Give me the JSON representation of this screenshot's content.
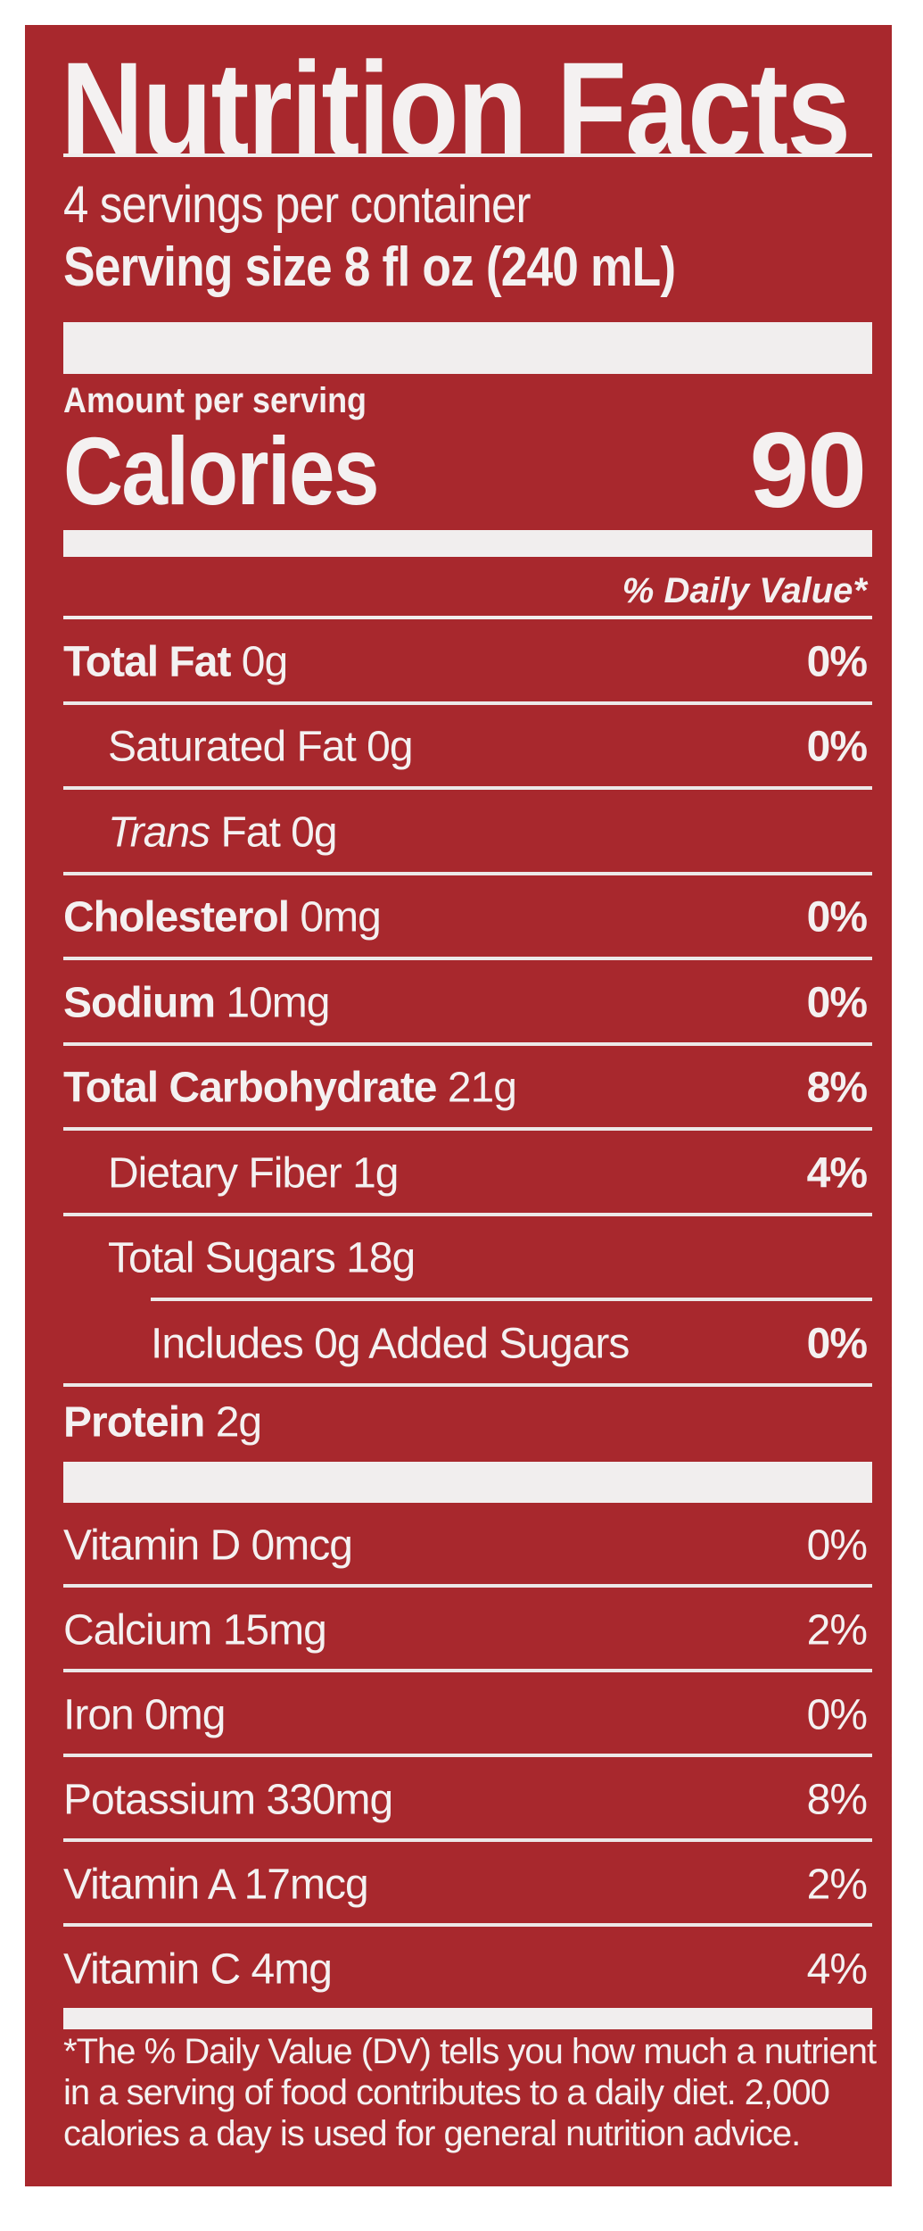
{
  "label": {
    "title": "Nutrition Facts",
    "servings_per_container": "4 servings per container",
    "serving_size": "Serving size 8 fl oz (240 mL)",
    "amount_per_serving": "Amount per serving",
    "calories_label": "Calories",
    "calories_value": "90",
    "daily_value_header": "% Daily Value*",
    "nutrients": [
      {
        "name": "Total Fat",
        "amount": "0g",
        "dv": "0%",
        "indent": 0,
        "bold": true
      },
      {
        "name": "Saturated Fat",
        "amount": "0g",
        "dv": "0%",
        "indent": 1,
        "bold": false
      },
      {
        "name": "Trans",
        "suffix": "Fat 0g",
        "amount": "",
        "dv": "",
        "indent": 1,
        "italic": true
      },
      {
        "name": "Cholesterol",
        "amount": "0mg",
        "dv": "0%",
        "indent": 0,
        "bold": true
      },
      {
        "name": "Sodium",
        "amount": "10mg",
        "dv": "0%",
        "indent": 0,
        "bold": true
      },
      {
        "name": "Total Carbohydrate",
        "amount": "21g",
        "dv": "8%",
        "indent": 0,
        "bold": true
      },
      {
        "name": "Dietary Fiber",
        "amount": "1g",
        "dv": "4%",
        "indent": 1,
        "bold": false
      },
      {
        "name": "Total Sugars",
        "amount": "18g",
        "dv": "",
        "indent": 1,
        "bold": false
      },
      {
        "name": "Includes 0g Added Sugars",
        "amount": "",
        "dv": "0%",
        "indent": 2,
        "bold": false
      },
      {
        "name": "Protein",
        "amount": "2g",
        "dv": "",
        "indent": 0,
        "bold": true
      }
    ],
    "vitamins": [
      {
        "name": "Vitamin D",
        "amount": "0mcg",
        "dv": "0%"
      },
      {
        "name": "Calcium",
        "amount": "15mg",
        "dv": "2%"
      },
      {
        "name": "Iron",
        "amount": "0mg",
        "dv": "0%"
      },
      {
        "name": "Potassium",
        "amount": "330mg",
        "dv": "8%"
      },
      {
        "name": "Vitamin A",
        "amount": "17mcg",
        "dv": "2%"
      },
      {
        "name": "Vitamin C",
        "amount": "4mg",
        "dv": "4%"
      }
    ],
    "footnote": "*The % Daily Value (DV) tells you how much a nutrient in a serving of food contributes to a daily diet. 2,000 calories a day is used for general nutrition advice."
  },
  "colors": {
    "background": "#a8282d",
    "text": "#f4f1f1"
  }
}
